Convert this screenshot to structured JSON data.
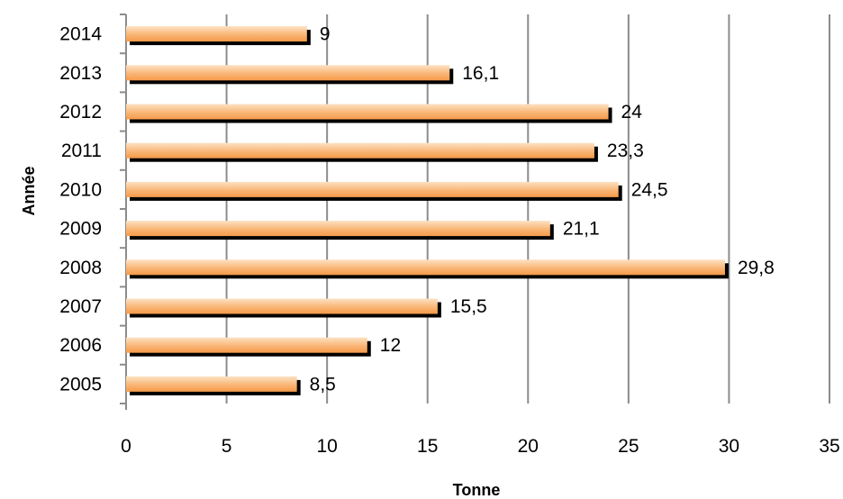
{
  "chart_data": {
    "type": "bar",
    "orientation": "horizontal",
    "categories": [
      "2005",
      "2006",
      "2007",
      "2008",
      "2009",
      "2010",
      "2011",
      "2012",
      "2013",
      "2014"
    ],
    "values": [
      8.5,
      12,
      15.5,
      29.8,
      21.1,
      24.5,
      23.3,
      24,
      16.1,
      9
    ],
    "data_labels": [
      "8,5",
      "12",
      "15,5",
      "29,8",
      "21,1",
      "24,5",
      "23,3",
      "24",
      "16,1",
      "9"
    ],
    "xlabel": "Tonne",
    "ylabel": "Année",
    "xlim": [
      0,
      35
    ],
    "xticks": [
      0,
      5,
      10,
      15,
      20,
      25,
      30,
      35
    ],
    "xtick_labels": [
      "0",
      "5",
      "10",
      "15",
      "20",
      "25",
      "30",
      "35"
    ],
    "grid": "vertical",
    "legend": "none",
    "bar_color": "#f7a25a",
    "bar_highlight": "#fde2c4",
    "shadow_color": "#000000"
  }
}
